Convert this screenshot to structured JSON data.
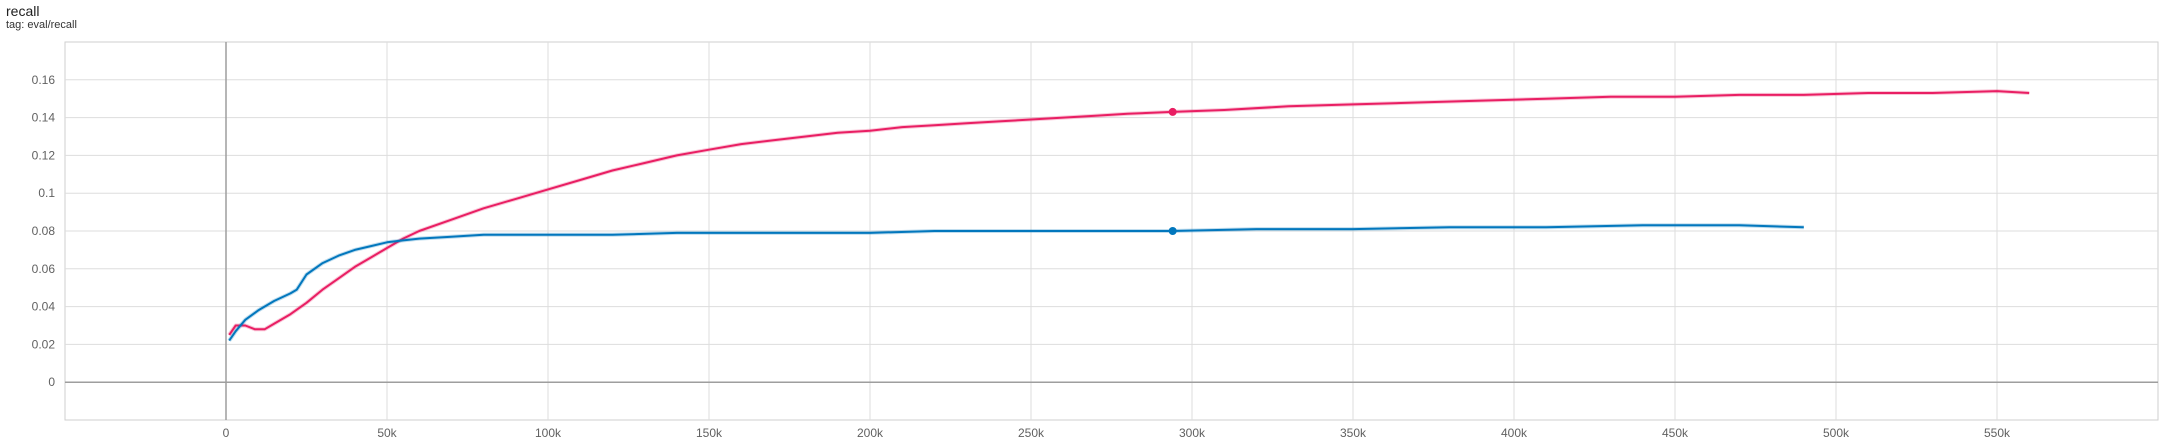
{
  "header": {
    "title": "recall",
    "subtitle": "tag: eval/recall"
  },
  "chart_data": {
    "type": "line",
    "title": "recall",
    "subtitle": "tag: eval/recall",
    "xlabel": "",
    "ylabel": "",
    "xlim": [
      -50000,
      600000
    ],
    "ylim": [
      -0.02,
      0.18
    ],
    "x_ticks": [
      0,
      50000,
      100000,
      150000,
      200000,
      250000,
      300000,
      350000,
      400000,
      450000,
      500000,
      550000
    ],
    "x_tick_labels": [
      "0",
      "50k",
      "100k",
      "150k",
      "200k",
      "250k",
      "300k",
      "350k",
      "400k",
      "450k",
      "500k",
      "550k"
    ],
    "y_ticks": [
      0,
      0.02,
      0.04,
      0.06,
      0.08,
      0.1,
      0.12,
      0.14,
      0.16
    ],
    "y_tick_labels": [
      "0",
      "0.02",
      "0.04",
      "0.06",
      "0.08",
      "0.1",
      "0.12",
      "0.14",
      "0.16"
    ],
    "grid": true,
    "series": [
      {
        "color": "#e91e63",
        "x": [
          1000,
          3000,
          6000,
          9000,
          12000,
          15000,
          20000,
          25000,
          30000,
          35000,
          40000,
          45000,
          50000,
          55000,
          60000,
          70000,
          80000,
          90000,
          100000,
          110000,
          120000,
          130000,
          140000,
          150000,
          160000,
          170000,
          180000,
          190000,
          200000,
          210000,
          220000,
          230000,
          240000,
          250000,
          260000,
          270000,
          280000,
          294000,
          310000,
          330000,
          350000,
          370000,
          390000,
          410000,
          430000,
          450000,
          470000,
          490000,
          510000,
          530000,
          550000,
          560000
        ],
        "y": [
          0.025,
          0.03,
          0.03,
          0.028,
          0.028,
          0.031,
          0.036,
          0.042,
          0.049,
          0.055,
          0.061,
          0.066,
          0.071,
          0.076,
          0.08,
          0.086,
          0.092,
          0.097,
          0.102,
          0.107,
          0.112,
          0.116,
          0.12,
          0.123,
          0.126,
          0.128,
          0.13,
          0.132,
          0.133,
          0.135,
          0.136,
          0.137,
          0.138,
          0.139,
          0.14,
          0.141,
          0.142,
          0.143,
          0.144,
          0.146,
          0.147,
          0.148,
          0.149,
          0.15,
          0.151,
          0.151,
          0.152,
          0.152,
          0.153,
          0.153,
          0.154,
          0.153
        ],
        "marker": {
          "x": 294000,
          "y": 0.143
        }
      },
      {
        "color": "#0277bd",
        "x": [
          1000,
          3000,
          6000,
          10000,
          15000,
          20000,
          22000,
          25000,
          30000,
          35000,
          40000,
          45000,
          50000,
          55000,
          60000,
          70000,
          80000,
          90000,
          100000,
          120000,
          140000,
          160000,
          180000,
          200000,
          220000,
          240000,
          260000,
          280000,
          294000,
          320000,
          350000,
          380000,
          410000,
          440000,
          470000,
          490000
        ],
        "y": [
          0.022,
          0.027,
          0.033,
          0.038,
          0.043,
          0.047,
          0.049,
          0.057,
          0.063,
          0.067,
          0.07,
          0.072,
          0.074,
          0.075,
          0.076,
          0.077,
          0.078,
          0.078,
          0.078,
          0.078,
          0.079,
          0.079,
          0.079,
          0.079,
          0.08,
          0.08,
          0.08,
          0.08,
          0.08,
          0.081,
          0.081,
          0.082,
          0.082,
          0.083,
          0.083,
          0.082
        ],
        "marker": {
          "x": 294000,
          "y": 0.08
        }
      }
    ]
  }
}
